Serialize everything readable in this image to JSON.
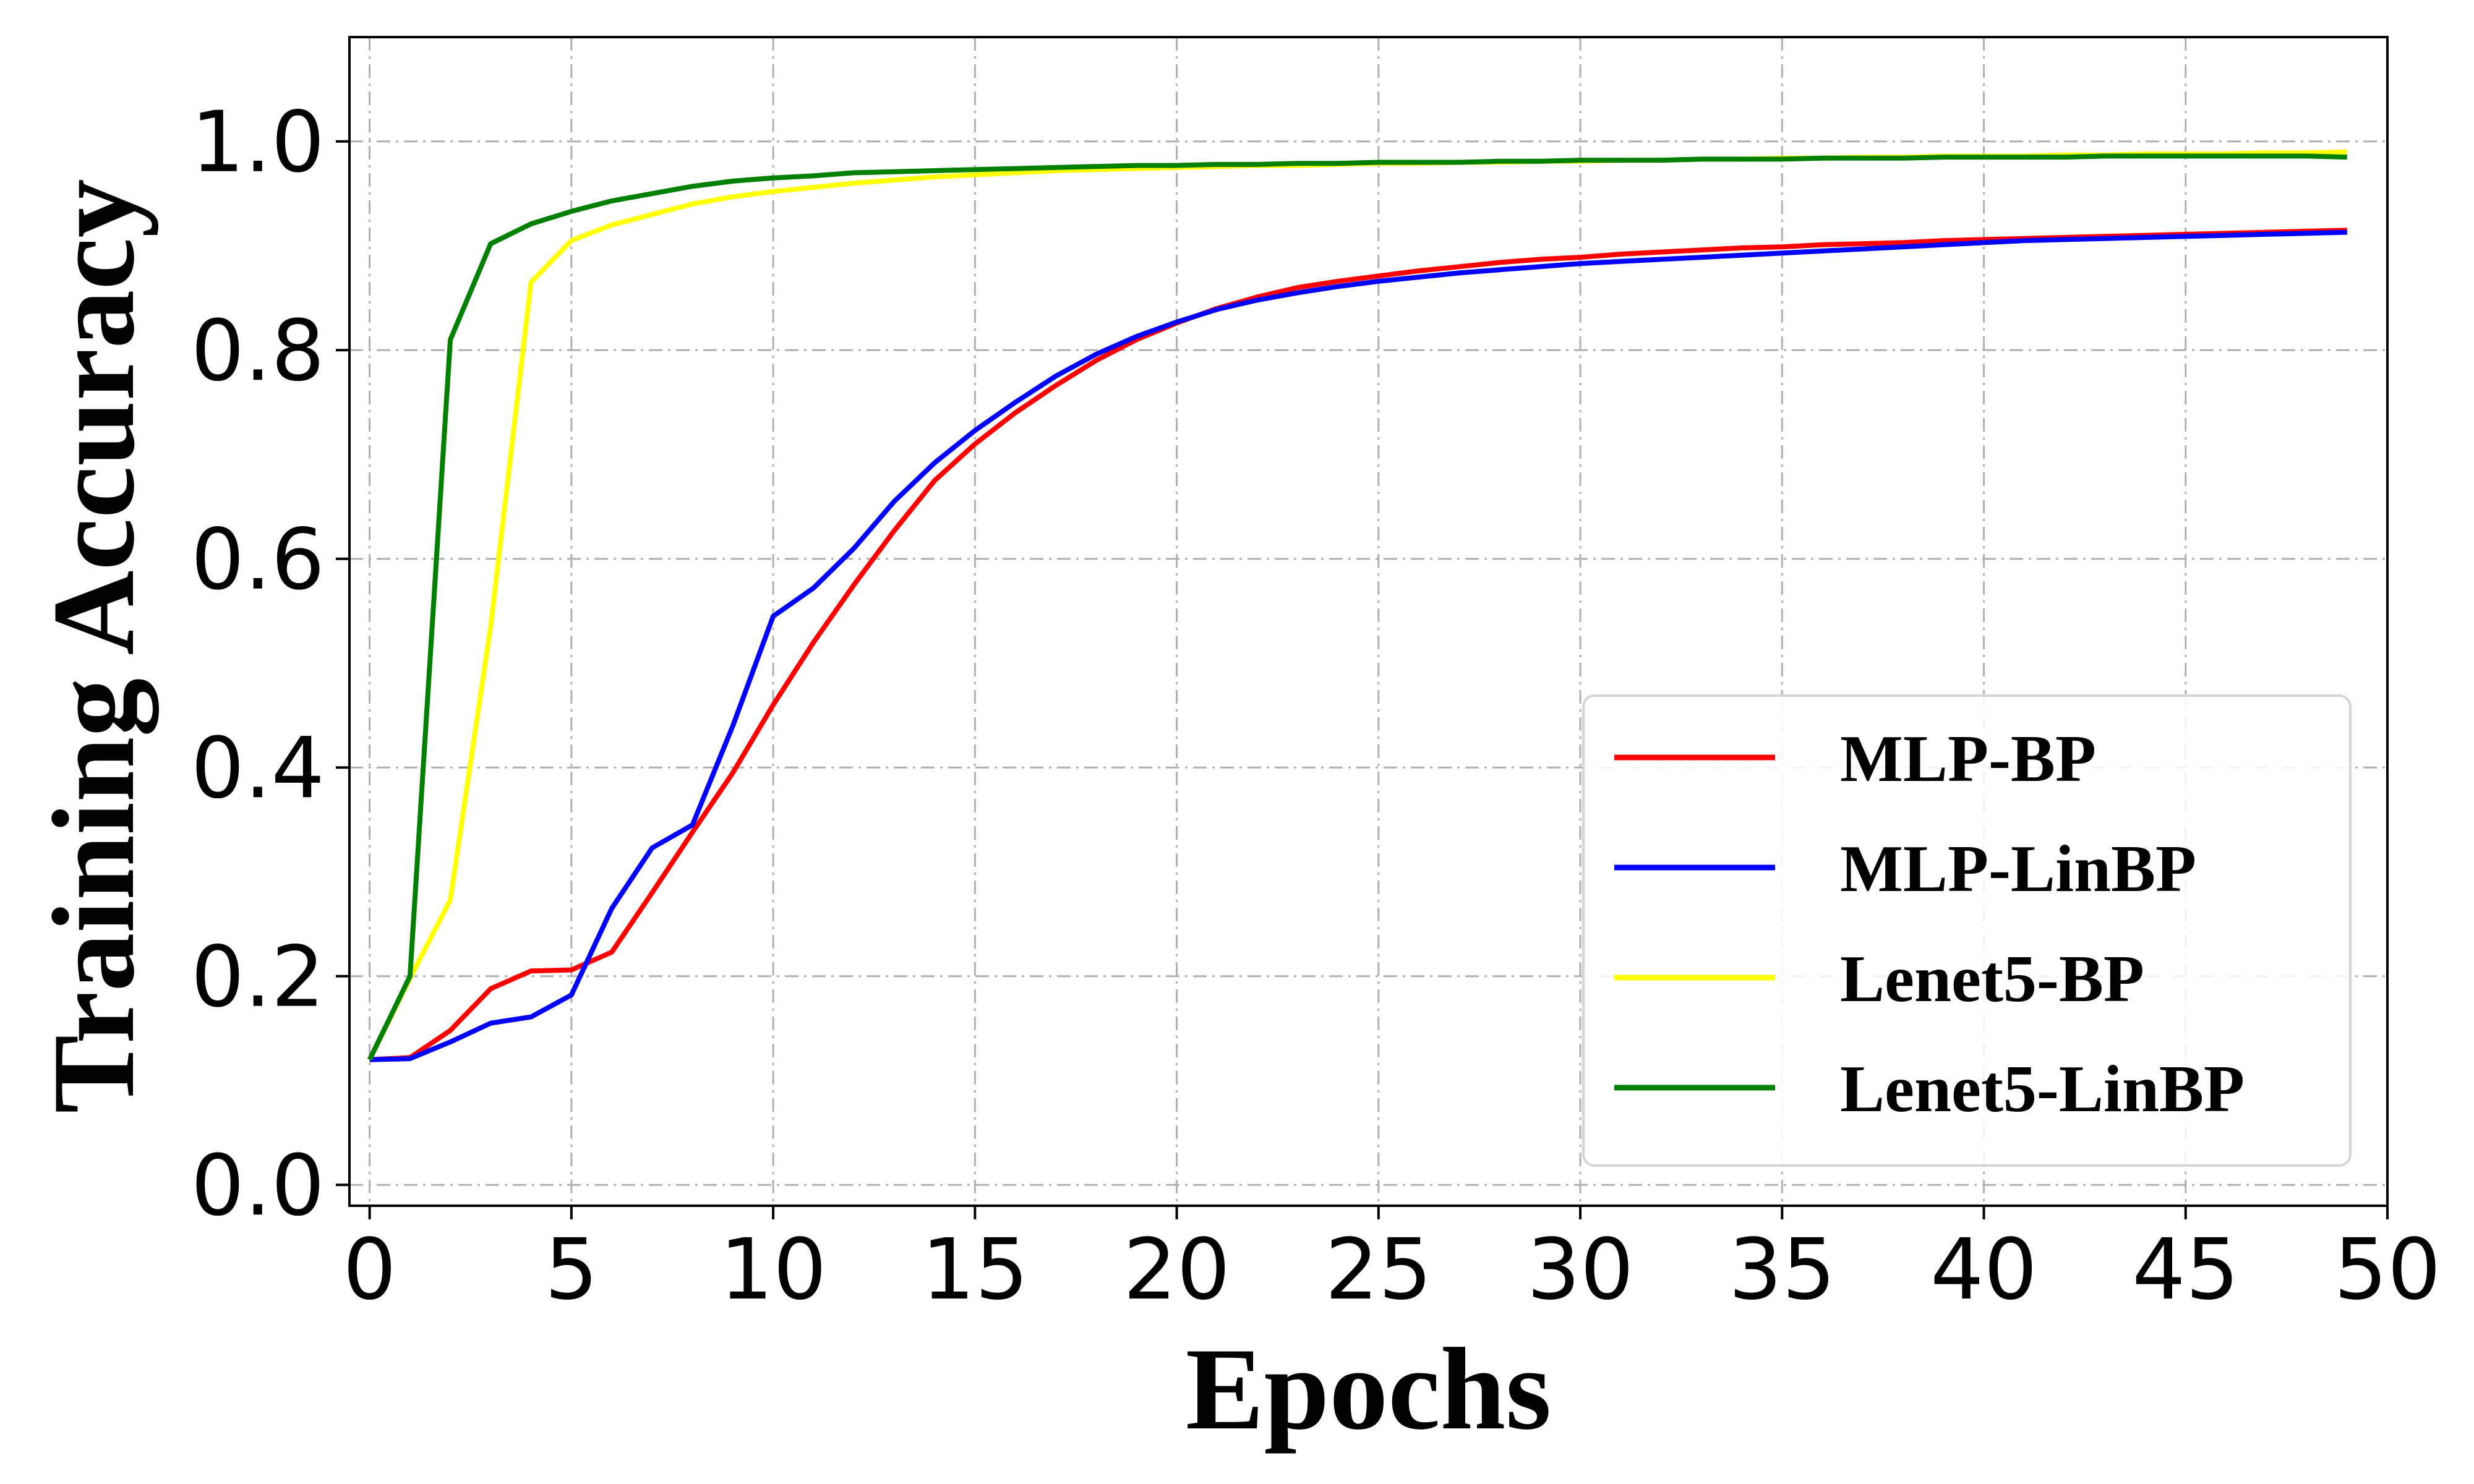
{
  "chart_data": {
    "type": "line",
    "xlabel": "Epochs",
    "ylabel": "Training Accuracy",
    "xlim": [
      -0.5,
      50
    ],
    "ylim": [
      -0.02,
      1.1
    ],
    "xticks": [
      0,
      5,
      10,
      15,
      20,
      25,
      30,
      35,
      40,
      45,
      50
    ],
    "yticks": [
      0.0,
      0.2,
      0.4,
      0.6,
      0.8,
      1.0
    ],
    "xtick_labels": [
      "0",
      "5",
      "10",
      "15",
      "20",
      "25",
      "30",
      "35",
      "40",
      "45",
      "50"
    ],
    "ytick_labels": [
      "0.0",
      "0.2",
      "0.4",
      "0.6",
      "0.8",
      "1.0"
    ],
    "grid": true,
    "legend_position": "lower right",
    "x": [
      0,
      1,
      2,
      3,
      4,
      5,
      6,
      7,
      8,
      9,
      10,
      11,
      12,
      13,
      14,
      15,
      16,
      17,
      18,
      19,
      20,
      21,
      22,
      23,
      24,
      25,
      26,
      27,
      28,
      29,
      30,
      31,
      32,
      33,
      34,
      35,
      36,
      37,
      38,
      39,
      40,
      41,
      42,
      43,
      44,
      45,
      46,
      47,
      48,
      49
    ],
    "series": [
      {
        "name": "MLP-BP",
        "color": "#ff0000",
        "values": [
          0.12,
          0.122,
          0.148,
          0.188,
          0.205,
          0.206,
          0.223,
          0.28,
          0.338,
          0.395,
          0.46,
          0.52,
          0.575,
          0.627,
          0.675,
          0.71,
          0.74,
          0.766,
          0.79,
          0.81,
          0.826,
          0.84,
          0.851,
          0.86,
          0.866,
          0.871,
          0.876,
          0.88,
          0.884,
          0.887,
          0.889,
          0.892,
          0.894,
          0.896,
          0.898,
          0.899,
          0.901,
          0.902,
          0.903,
          0.905,
          0.906,
          0.907,
          0.908,
          0.909,
          0.91,
          0.911,
          0.912,
          0.913,
          0.914,
          0.915
        ]
      },
      {
        "name": "MLP-LinBP",
        "color": "#0000ff",
        "values": [
          0.12,
          0.121,
          0.137,
          0.155,
          0.161,
          0.182,
          0.265,
          0.323,
          0.345,
          0.44,
          0.545,
          0.572,
          0.61,
          0.655,
          0.692,
          0.723,
          0.75,
          0.775,
          0.796,
          0.813,
          0.827,
          0.839,
          0.848,
          0.855,
          0.861,
          0.866,
          0.87,
          0.874,
          0.877,
          0.88,
          0.883,
          0.885,
          0.887,
          0.889,
          0.891,
          0.893,
          0.895,
          0.897,
          0.899,
          0.901,
          0.903,
          0.905,
          0.906,
          0.907,
          0.908,
          0.909,
          0.91,
          0.911,
          0.912,
          0.913
        ]
      },
      {
        "name": "Lenet5-BP",
        "color": "#ffff00",
        "values": [
          0.12,
          0.198,
          0.273,
          0.535,
          0.865,
          0.905,
          0.92,
          0.93,
          0.94,
          0.947,
          0.952,
          0.956,
          0.96,
          0.963,
          0.966,
          0.968,
          0.97,
          0.972,
          0.973,
          0.974,
          0.975,
          0.976,
          0.977,
          0.977,
          0.978,
          0.979,
          0.979,
          0.98,
          0.98,
          0.981,
          0.981,
          0.982,
          0.982,
          0.983,
          0.983,
          0.984,
          0.984,
          0.985,
          0.985,
          0.986,
          0.986,
          0.986,
          0.987,
          0.987,
          0.988,
          0.988,
          0.988,
          0.989,
          0.989,
          0.99
        ]
      },
      {
        "name": "Lenet5-LinBP",
        "color": "#008000",
        "values": [
          0.12,
          0.2,
          0.81,
          0.902,
          0.921,
          0.933,
          0.943,
          0.95,
          0.957,
          0.962,
          0.965,
          0.967,
          0.97,
          0.971,
          0.972,
          0.973,
          0.974,
          0.975,
          0.976,
          0.977,
          0.977,
          0.978,
          0.978,
          0.979,
          0.979,
          0.98,
          0.98,
          0.98,
          0.981,
          0.981,
          0.982,
          0.982,
          0.982,
          0.983,
          0.983,
          0.983,
          0.984,
          0.984,
          0.984,
          0.985,
          0.985,
          0.985,
          0.985,
          0.986,
          0.986,
          0.986,
          0.986,
          0.986,
          0.986,
          0.985
        ]
      }
    ]
  }
}
